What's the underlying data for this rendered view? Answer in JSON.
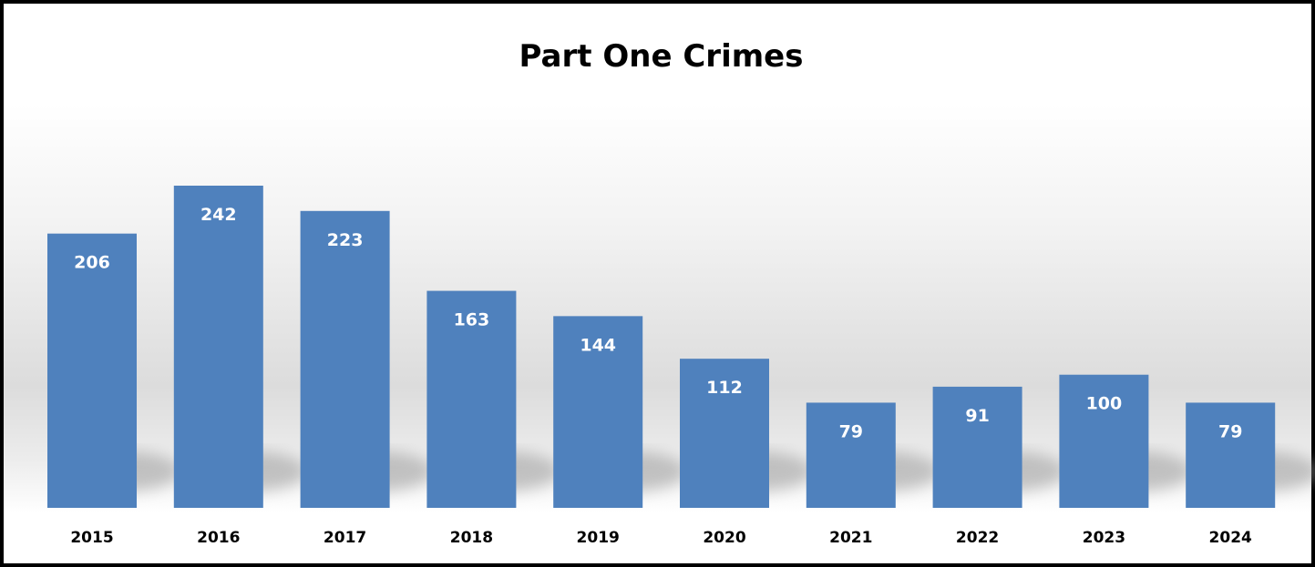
{
  "chart_data": {
    "type": "bar",
    "title": "Part One Crimes",
    "categories": [
      "2015",
      "2016",
      "2017",
      "2018",
      "2019",
      "2020",
      "2021",
      "2022",
      "2023",
      "2024"
    ],
    "values": [
      206,
      242,
      223,
      163,
      144,
      112,
      79,
      91,
      100,
      79
    ],
    "xlabel": "",
    "ylabel": "",
    "data_labels": true,
    "legend": "none",
    "grid": false,
    "ylim": [
      0,
      242
    ],
    "colors": {
      "bar": "#4F81BD",
      "label": "#FFFFFF",
      "frame": "#000000"
    }
  }
}
